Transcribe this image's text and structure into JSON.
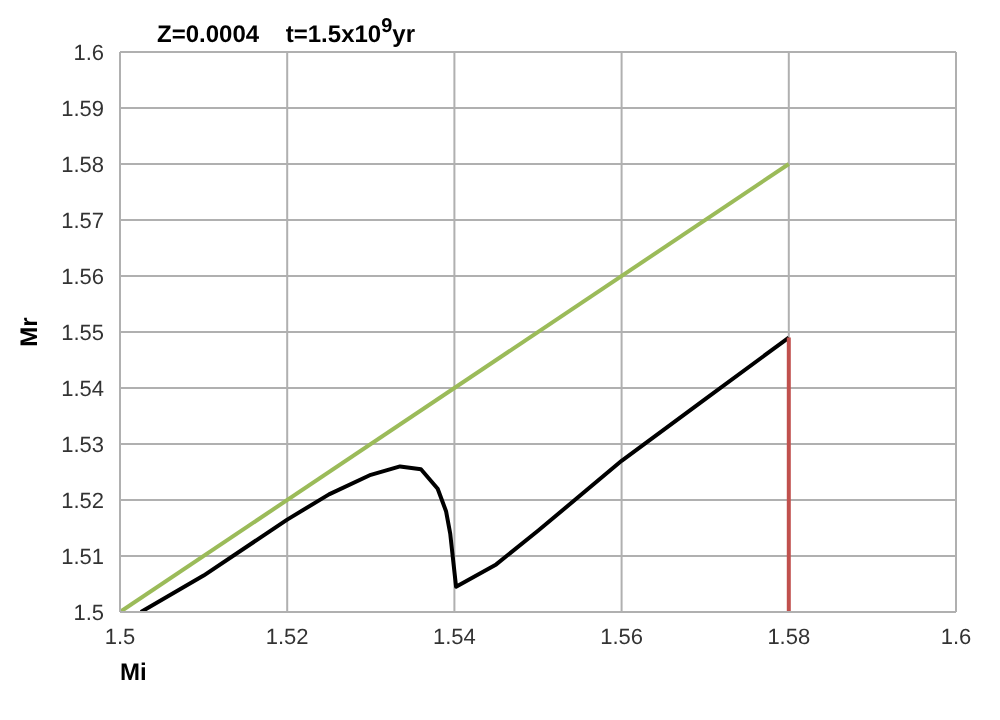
{
  "chart_data": {
    "type": "line",
    "title": "Z=0.0004    t=1.5x10$^{9}$yr",
    "xlabel": "Mi",
    "ylabel": "Mr",
    "series": [
      {
        "color": "#9bbb59",
        "x": [
          1.5,
          1.58
        ],
        "values": [
          1.5,
          1.58
        ]
      },
      {
        "color": "#000000",
        "x": [
          1.5025,
          1.51,
          1.52,
          1.525,
          1.53,
          1.5335,
          1.536,
          1.538,
          1.539,
          1.5395,
          1.5402,
          1.545,
          1.55,
          1.56,
          1.57,
          1.58
        ],
        "values": [
          1.5,
          1.5065,
          1.5165,
          1.521,
          1.5245,
          1.526,
          1.5255,
          1.522,
          1.518,
          1.514,
          1.5045,
          1.5085,
          1.5145,
          1.527,
          1.538,
          1.549
        ]
      },
      {
        "color": "#c0504d",
        "x": [
          1.58,
          1.58
        ],
        "values": [
          1.549,
          1.5
        ]
      }
    ],
    "xlim": [
      1.5,
      1.6
    ],
    "xticks": [
      1.5,
      1.52,
      1.54,
      1.56,
      1.58,
      1.6
    ],
    "ylim": [
      1.5,
      1.6
    ],
    "yticks": [
      1.5,
      1.51,
      1.52,
      1.53,
      1.54,
      1.55,
      1.56,
      1.57,
      1.58,
      1.59,
      1.6
    ],
    "grid": true,
    "marker": "none",
    "line_style": "solid"
  }
}
